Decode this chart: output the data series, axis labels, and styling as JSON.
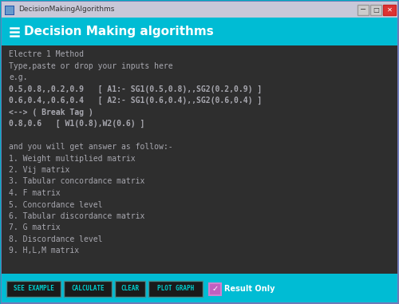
{
  "title_bar_text": "DecisionMakingAlgorithms",
  "header_text": "Decision Making algorithms",
  "header_bg": "#00BCD4",
  "window_bg": "#2E2E2E",
  "outer_bg": "#00ACC1",
  "title_bar_bg": "#C8C8D8",
  "text_color": "#A8A8B0",
  "header_text_color": "#FFFFFF",
  "title_bar_text_color": "#333333",
  "content_lines": [
    "Electre 1 Method",
    "Type,paste or drop your inputs here",
    "e.g.",
    "0.5,0.8,,0.2,0.9   [ A1:- SG1(0.5,0.8),,SG2(0.2,0.9) ]",
    "0.6,0.4,,0.6,0.4   [ A2:- SG1(0.6,0.4),,SG2(0.6,0.4) ]",
    "<--> ( Break Tag )",
    "0.8,0.6   [ W1(0.8),W2(0.6) ]",
    "",
    "and you will get answer as follow:-",
    "1. Weight multiplied matrix",
    "2. Vij matrix",
    "3. Tabular concordance matrix",
    "4. F matrix",
    "5. Concordance level",
    "6. Tabular discordance matrix",
    "7. G matrix",
    "8. Discordance level",
    "9. H,L,M matrix"
  ],
  "bold_indices": [
    3,
    4,
    5,
    6
  ],
  "buttons": [
    "SEE EXAMPLE",
    "CALCULATE",
    "CLEAR",
    "PLOT GRAPH"
  ],
  "button_bg": "#1A1A1A",
  "button_text_color": "#00CFCF",
  "button_border": "#4A8A8A",
  "footer_bg": "#00BCD4",
  "checkbox_label": "Result Only",
  "checkbox_fill": "#C060C0",
  "checkbox_border": "#D080D0",
  "figsize": [
    5.0,
    3.81
  ],
  "dpi": 100
}
